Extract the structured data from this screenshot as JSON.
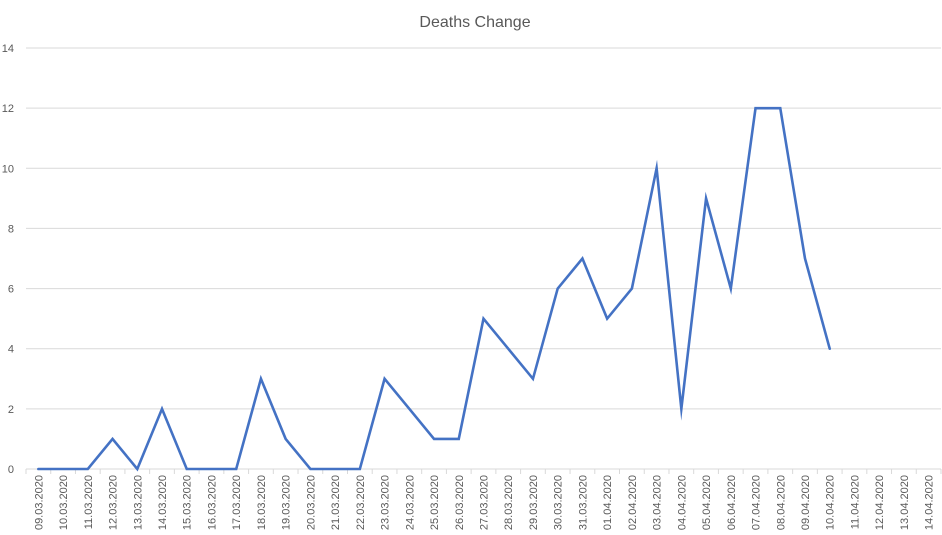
{
  "chart_data": {
    "type": "line",
    "title": "Deaths Change",
    "xlabel": "",
    "ylabel": "",
    "ylim": [
      0,
      14
    ],
    "yticks": [
      0,
      2,
      4,
      6,
      8,
      10,
      12,
      14
    ],
    "grid": "horizontal",
    "legend": "none",
    "categories": [
      "09.03.2020",
      "10.03.2020",
      "11.03.2020",
      "12.03.2020",
      "13.03.2020",
      "14.03.2020",
      "15.03.2020",
      "16.03.2020",
      "17.03.2020",
      "18.03.2020",
      "19.03.2020",
      "20.03.2020",
      "21.03.2020",
      "22.03.2020",
      "23.03.2020",
      "24.03.2020",
      "25.03.2020",
      "26.03.2020",
      "27.03.2020",
      "28.03.2020",
      "29.03.2020",
      "30.03.2020",
      "31.03.2020",
      "01.04.2020",
      "02.04.2020",
      "03.04.2020",
      "04.04.2020",
      "05.04.2020",
      "06.04.2020",
      "07.04.2020",
      "08.04.2020",
      "09.04.2020",
      "10.04.2020",
      "11.04.2020",
      "12.04.2020",
      "13.04.2020",
      "14.04.2020"
    ],
    "series": [
      {
        "color": "#4472c4",
        "values": [
          0,
          0,
          0,
          1,
          0,
          2,
          0,
          0,
          0,
          3,
          1,
          0,
          0,
          0,
          3,
          2,
          1,
          1,
          5,
          4,
          3,
          6,
          7,
          5,
          6,
          10,
          2,
          9,
          6,
          12,
          12,
          7,
          4,
          null,
          null,
          null,
          null
        ]
      }
    ]
  }
}
